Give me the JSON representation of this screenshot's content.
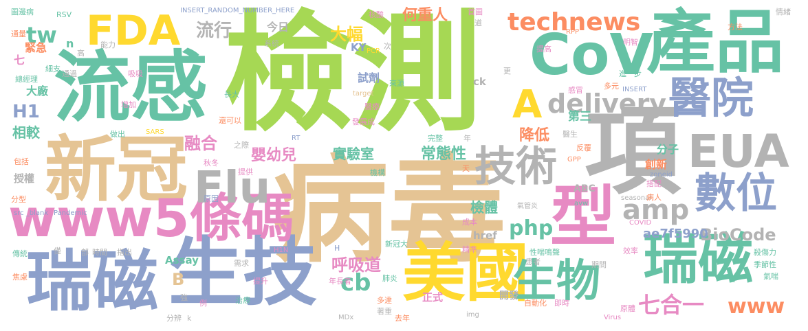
{
  "colors": {
    "green": "#a6d854",
    "teal": "#66c2a5",
    "tan": "#e5c494",
    "blue": "#8da0cb",
    "gray": "#b3b3b3",
    "pink": "#e78ac3",
    "orange": "#fc8d62",
    "yellow": "#ffd92f"
  },
  "words": [
    {
      "text": "檢測",
      "color": "green",
      "size": 4
    },
    {
      "text": "病毒",
      "color": "tan",
      "size": 4
    },
    {
      "text": "流感",
      "color": "teal",
      "size": 3
    },
    {
      "text": "新冠",
      "color": "tan",
      "size": 3
    },
    {
      "text": "瑞磁",
      "color": "blue",
      "size": 3
    },
    {
      "text": "生技",
      "color": "blue",
      "size": 3
    },
    {
      "text": "項",
      "color": "gray",
      "size": 3
    },
    {
      "text": "產品",
      "color": "teal",
      "size": 3
    },
    {
      "text": "CoV",
      "color": "teal",
      "size": 3
    },
    {
      "text": "美國",
      "color": "yellow",
      "size": 3
    },
    {
      "text": "型",
      "color": "pink",
      "size": 3
    },
    {
      "text": "瑞磁",
      "color": "teal",
      "size": 2
    },
    {
      "text": "www5條碼",
      "color": "pink",
      "size": 2
    },
    {
      "text": "FDA",
      "color": "yellow",
      "size": 2
    },
    {
      "text": "Flu",
      "color": "gray",
      "size": 2
    },
    {
      "text": "技術",
      "color": "gray",
      "size": 2
    },
    {
      "text": "EUA",
      "color": "gray",
      "size": 2
    },
    {
      "text": "醫院",
      "color": "blue",
      "size": 2
    },
    {
      "text": "數位",
      "color": "blue",
      "size": 2
    },
    {
      "text": "生物",
      "color": "teal",
      "size": 2
    },
    {
      "text": "A",
      "color": "yellow",
      "size": 2
    },
    {
      "text": "technews",
      "color": "orange",
      "size": 1
    },
    {
      "text": "delivery",
      "color": "gray",
      "size": 1
    },
    {
      "text": "amp",
      "color": "gray",
      "size": 1
    },
    {
      "text": "php",
      "color": "teal",
      "size": 1
    },
    {
      "text": "www",
      "color": "orange",
      "size": 1
    },
    {
      "text": "cb",
      "color": "teal",
      "size": 1
    },
    {
      "text": "七合一",
      "color": "pink",
      "size": 1
    },
    {
      "text": "BioCode",
      "color": "gray",
      "size": 1
    },
    {
      "text": "呼吸道",
      "color": "pink",
      "size": 1
    },
    {
      "text": "tw",
      "color": "teal",
      "size": 1
    },
    {
      "text": "流行",
      "color": "gray",
      "size": 1
    },
    {
      "text": "大幅",
      "color": "yellow",
      "size": 1
    },
    {
      "text": "何重人",
      "color": "orange",
      "size": 1
    },
    {
      "text": "融合",
      "color": "pink",
      "size": 1
    },
    {
      "text": "降低",
      "color": "orange",
      "size": 1
    },
    {
      "text": "嬰幼兒",
      "color": "pink",
      "size": 1
    },
    {
      "text": "實驗室",
      "color": "teal",
      "size": 1
    },
    {
      "text": "常態性",
      "color": "teal",
      "size": 1
    },
    {
      "text": "檢體",
      "color": "teal",
      "size": 1
    },
    {
      "text": "H1",
      "color": "blue",
      "size": 1
    },
    {
      "text": "相較",
      "color": "teal",
      "size": 1
    },
    {
      "text": "B",
      "color": "tan",
      "size": 1
    },
    {
      "text": "ae7f5990",
      "color": "blue",
      "size": 0
    },
    {
      "text": "第三",
      "color": "teal",
      "size": 0
    },
    {
      "text": "分子",
      "color": "teal",
      "size": 0
    },
    {
      "text": "創新",
      "color": "orange",
      "size": 0
    },
    {
      "text": "試劑",
      "color": "blue",
      "size": 0
    },
    {
      "text": "今日",
      "color": "gray",
      "size": 0
    },
    {
      "text": "KY",
      "color": "blue",
      "size": 0
    },
    {
      "text": "ck",
      "color": "gray",
      "size": 0
    },
    {
      "text": "大廠",
      "color": "teal",
      "size": 0
    },
    {
      "text": "緊急",
      "color": "orange",
      "size": 0
    },
    {
      "text": "七",
      "color": "pink",
      "size": 0
    },
    {
      "text": "授權",
      "color": "gray",
      "size": 0
    },
    {
      "text": "Assay",
      "color": "teal",
      "size": 0
    },
    {
      "text": "href",
      "color": "gray",
      "size": 0
    },
    {
      "text": "正式",
      "color": "pink",
      "size": 0
    },
    {
      "text": "開發",
      "color": "gray",
      "size": 0
    },
    {
      "text": "ABC",
      "color": "gray",
      "size": 0
    },
    {
      "text": "n",
      "color": "teal",
      "size": 0
    },
    {
      "text": "INSERT_RANDOM_NUMBER_HERE",
      "color": "blue",
      "size": -1
    },
    {
      "text": "氣管炎",
      "color": "gray",
      "size": -1
    },
    {
      "text": "Pandemic",
      "color": "blue",
      "size": -1
    },
    {
      "text": "seasonal",
      "color": "gray",
      "size": -1
    },
    {
      "text": "zoneid",
      "color": "blue",
      "size": -1
    },
    {
      "text": "COVID",
      "color": "pink",
      "size": -1
    },
    {
      "text": "RSV",
      "color": "teal",
      "size": -1
    },
    {
      "text": "SARS",
      "color": "yellow",
      "size": -1
    },
    {
      "text": "PCR",
      "color": "yellow",
      "size": -1
    },
    {
      "text": "Virus",
      "color": "pink",
      "size": -1
    },
    {
      "text": "MDx",
      "color": "gray",
      "size": -1
    },
    {
      "text": "H1N",
      "color": "pink",
      "size": -1
    },
    {
      "text": "GPP",
      "color": "orange",
      "size": -1
    },
    {
      "text": "RPP",
      "color": "orange",
      "size": -1
    },
    {
      "text": "INSERT",
      "color": "blue",
      "size": -1
    },
    {
      "text": "target",
      "color": "tan",
      "size": -1
    },
    {
      "text": "RT",
      "color": "blue",
      "size": -1
    },
    {
      "text": "img",
      "color": "gray",
      "size": -1
    },
    {
      "text": "avw",
      "color": "teal",
      "size": -1
    },
    {
      "text": "src _blank",
      "color": "blue",
      "size": -1
    },
    {
      "text": "圖邊病",
      "color": "teal",
      "size": -1
    },
    {
      "text": "通量",
      "color": "orange",
      "size": -1
    },
    {
      "text": "能力",
      "color": "gray",
      "size": -1
    },
    {
      "text": "高",
      "color": "gray",
      "size": -1
    },
    {
      "text": "細支",
      "color": "teal",
      "size": -1
    },
    {
      "text": "總經理",
      "color": "teal",
      "size": -1
    },
    {
      "text": "增加",
      "color": "pink",
      "size": -1
    },
    {
      "text": "通過",
      "color": "gray",
      "size": -1
    },
    {
      "text": "吸吸",
      "color": "pink",
      "size": -1
    },
    {
      "text": "系統",
      "color": "gray",
      "size": -1
    },
    {
      "text": "長大",
      "color": "teal",
      "size": -1
    },
    {
      "text": "核酸",
      "color": "pink",
      "size": -1
    },
    {
      "text": "首圖",
      "color": "pink",
      "size": -1
    },
    {
      "text": "道",
      "color": "gray",
      "size": -1
    },
    {
      "text": "次",
      "color": "gray",
      "size": -1
    },
    {
      "text": "來源",
      "color": "teal",
      "size": -1
    },
    {
      "text": "醫療",
      "color": "pink",
      "size": -1
    },
    {
      "text": "發展成",
      "color": "pink",
      "size": -1
    },
    {
      "text": "更",
      "color": "gray",
      "size": -1
    },
    {
      "text": "提高",
      "color": "pink",
      "size": -1
    },
    {
      "text": "明智",
      "color": "pink",
      "size": -1
    },
    {
      "text": "方法",
      "color": "orange",
      "size": -1
    },
    {
      "text": "情緒",
      "color": "gray",
      "size": -1
    },
    {
      "text": "進一步",
      "color": "teal",
      "size": -1
    },
    {
      "text": "多元",
      "color": "orange",
      "size": -1
    },
    {
      "text": "感冒",
      "color": "pink",
      "size": -1
    },
    {
      "text": "做出",
      "color": "teal",
      "size": -1
    },
    {
      "text": "還可以",
      "color": "orange",
      "size": -1
    },
    {
      "text": "之際",
      "color": "gray",
      "size": -1
    },
    {
      "text": "完整",
      "color": "teal",
      "size": -1
    },
    {
      "text": "年",
      "color": "gray",
      "size": -1
    },
    {
      "text": "醫生",
      "color": "gray",
      "size": -1
    },
    {
      "text": "反覆",
      "color": "orange",
      "size": -1
    },
    {
      "text": "包括",
      "color": "orange",
      "size": -1
    },
    {
      "text": "秋冬",
      "color": "pink",
      "size": -1
    },
    {
      "text": "提供",
      "color": "pink",
      "size": -1
    },
    {
      "text": "機構",
      "color": "teal",
      "size": -1
    },
    {
      "text": "天",
      "color": "orange",
      "size": -1
    },
    {
      "text": "搭配",
      "color": "pink",
      "size": -1
    },
    {
      "text": "分型",
      "color": "orange",
      "size": -1
    },
    {
      "text": "原因",
      "color": "blue",
      "size": -1
    },
    {
      "text": "成本",
      "color": "pink",
      "size": -1
    },
    {
      "text": "病人",
      "color": "orange",
      "size": -1
    },
    {
      "text": "傳統",
      "color": "teal",
      "size": -1
    },
    {
      "text": "部",
      "color": "gray",
      "size": -1
    },
    {
      "text": "時間",
      "color": "gray",
      "size": -1
    },
    {
      "text": "指出",
      "color": "gray",
      "size": -1
    },
    {
      "text": "僅",
      "color": "gray",
      "size": -1
    },
    {
      "text": "H",
      "color": "blue",
      "size": -1
    },
    {
      "text": "新冠大",
      "color": "teal",
      "size": -1
    },
    {
      "text": "精準",
      "color": "pink",
      "size": -1
    },
    {
      "text": "性喘鳴聲",
      "color": "teal",
      "size": -1
    },
    {
      "text": "患者",
      "color": "gray",
      "size": -1
    },
    {
      "text": "期間",
      "color": "gray",
      "size": -1
    },
    {
      "text": "效率",
      "color": "pink",
      "size": -1
    },
    {
      "text": "殺傷力",
      "color": "teal",
      "size": -1
    },
    {
      "text": "季節性",
      "color": "teal",
      "size": -1
    },
    {
      "text": "氣喘",
      "color": "teal",
      "size": -1
    },
    {
      "text": "需求",
      "color": "gray",
      "size": -1
    },
    {
      "text": "提升",
      "color": "pink",
      "size": -1
    },
    {
      "text": "年長者",
      "color": "pink",
      "size": -1
    },
    {
      "text": "肺炎",
      "color": "teal",
      "size": -1
    },
    {
      "text": "焦慮",
      "color": "orange",
      "size": -1
    },
    {
      "text": "強",
      "color": "gray",
      "size": -1
    },
    {
      "text": "例",
      "color": "pink",
      "size": -1
    },
    {
      "text": "治療",
      "color": "teal",
      "size": -1
    },
    {
      "text": "多達",
      "color": "orange",
      "size": -1
    },
    {
      "text": "自動化",
      "color": "orange",
      "size": -1
    },
    {
      "text": "即時",
      "color": "pink",
      "size": -1
    },
    {
      "text": "原體",
      "color": "pink",
      "size": -1
    },
    {
      "text": "分辨",
      "color": "gray",
      "size": -1
    },
    {
      "text": "k",
      "color": "gray",
      "size": -1
    },
    {
      "text": "著重",
      "color": "gray",
      "size": -1
    },
    {
      "text": "去年",
      "color": "orange",
      "size": -1
    }
  ]
}
